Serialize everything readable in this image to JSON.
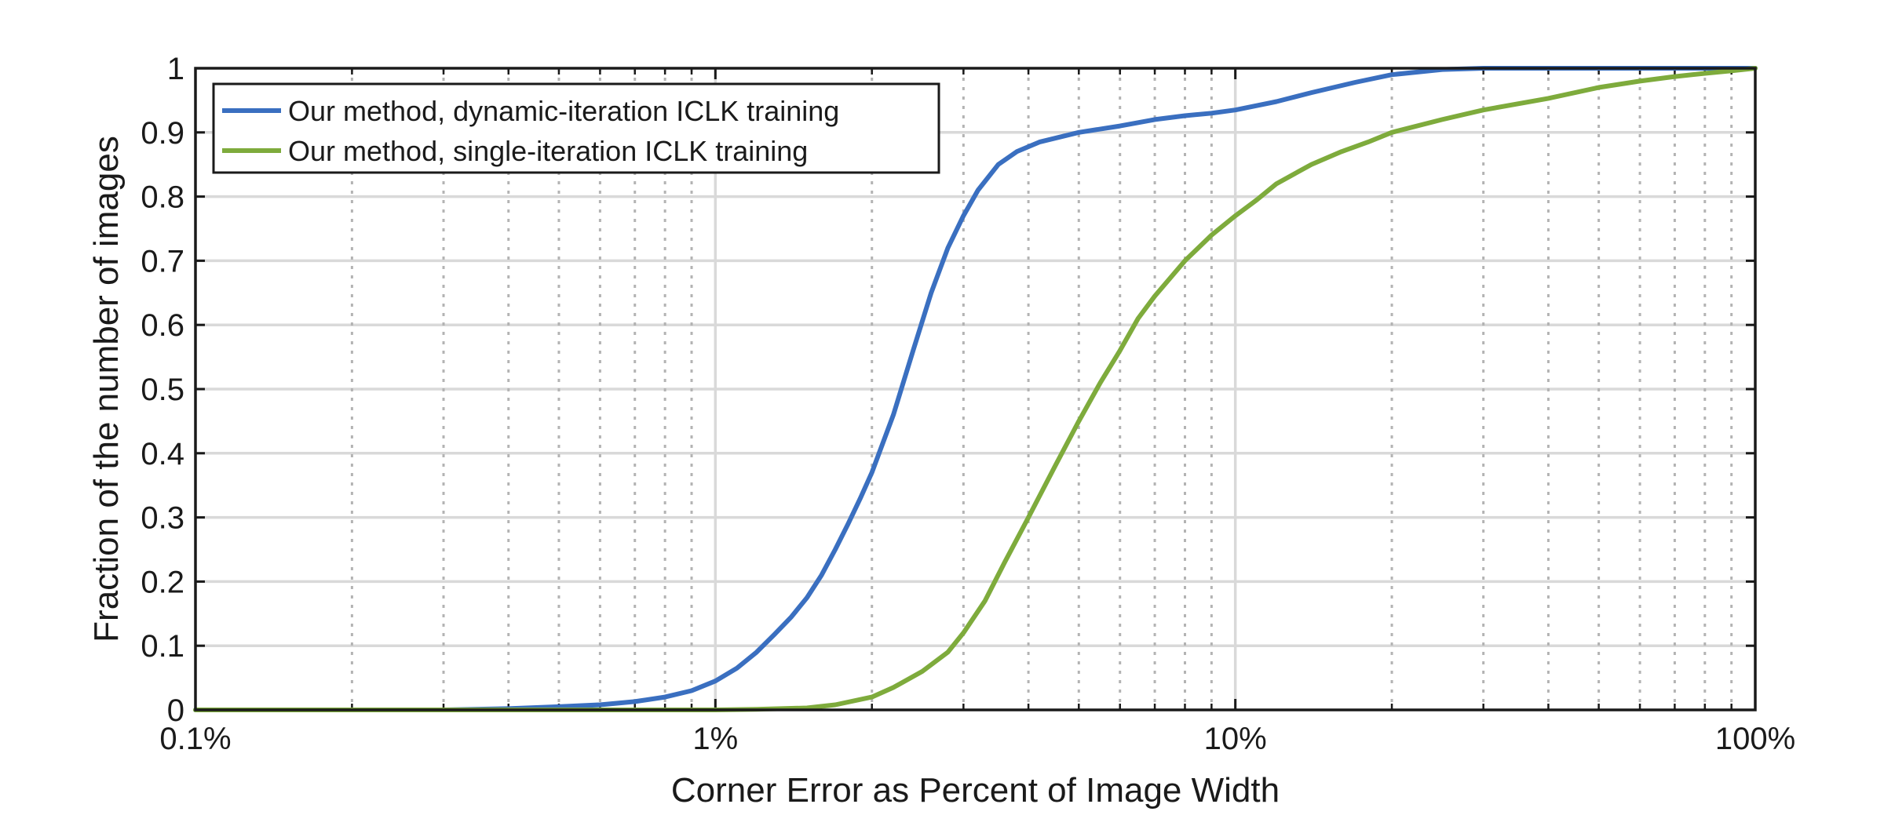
{
  "chart_data": {
    "type": "line",
    "xlabel": "Corner Error as Percent of Image Width",
    "ylabel": "Fraction of the number of images",
    "x_scale": "log",
    "xlim": [
      0.1,
      100
    ],
    "ylim": [
      0,
      1
    ],
    "x_ticks": [
      0.1,
      1,
      10,
      100
    ],
    "x_tick_labels": [
      "0.1%",
      "1%",
      "10%",
      "100%"
    ],
    "y_ticks": [
      0,
      0.1,
      0.2,
      0.3,
      0.4,
      0.5,
      0.6,
      0.7,
      0.8,
      0.9,
      1
    ],
    "y_tick_labels": [
      "0",
      "0.1",
      "0.2",
      "0.3",
      "0.4",
      "0.5",
      "0.6",
      "0.7",
      "0.8",
      "0.9",
      "1"
    ],
    "grid": true,
    "legend_position": "top-left",
    "series": [
      {
        "name": "Our method, dynamic-iteration ICLK training",
        "color": "#3a6fc0",
        "points": [
          [
            0.1,
            0
          ],
          [
            0.3,
            0
          ],
          [
            0.4,
            0.002
          ],
          [
            0.5,
            0.005
          ],
          [
            0.6,
            0.008
          ],
          [
            0.7,
            0.013
          ],
          [
            0.8,
            0.02
          ],
          [
            0.9,
            0.03
          ],
          [
            1.0,
            0.045
          ],
          [
            1.1,
            0.065
          ],
          [
            1.2,
            0.09
          ],
          [
            1.3,
            0.118
          ],
          [
            1.4,
            0.145
          ],
          [
            1.5,
            0.175
          ],
          [
            1.6,
            0.21
          ],
          [
            1.7,
            0.25
          ],
          [
            1.8,
            0.29
          ],
          [
            1.9,
            0.33
          ],
          [
            2.0,
            0.37
          ],
          [
            2.2,
            0.46
          ],
          [
            2.4,
            0.56
          ],
          [
            2.6,
            0.65
          ],
          [
            2.8,
            0.72
          ],
          [
            3.0,
            0.77
          ],
          [
            3.2,
            0.81
          ],
          [
            3.5,
            0.85
          ],
          [
            3.8,
            0.87
          ],
          [
            4.2,
            0.885
          ],
          [
            5.0,
            0.9
          ],
          [
            6.0,
            0.91
          ],
          [
            7.0,
            0.92
          ],
          [
            8.0,
            0.926
          ],
          [
            9.0,
            0.93
          ],
          [
            10,
            0.935
          ],
          [
            12,
            0.948
          ],
          [
            14,
            0.962
          ],
          [
            17,
            0.978
          ],
          [
            20,
            0.99
          ],
          [
            25,
            0.998
          ],
          [
            30,
            1.0
          ],
          [
            100,
            1.0
          ]
        ]
      },
      {
        "name": "Our method, single-iteration ICLK training",
        "color": "#7eab3c",
        "points": [
          [
            0.1,
            0
          ],
          [
            1.0,
            0
          ],
          [
            1.2,
            0.001
          ],
          [
            1.5,
            0.003
          ],
          [
            1.7,
            0.008
          ],
          [
            2.0,
            0.02
          ],
          [
            2.2,
            0.035
          ],
          [
            2.5,
            0.06
          ],
          [
            2.8,
            0.09
          ],
          [
            3.0,
            0.12
          ],
          [
            3.3,
            0.17
          ],
          [
            3.6,
            0.23
          ],
          [
            4.0,
            0.3
          ],
          [
            4.5,
            0.38
          ],
          [
            5.0,
            0.45
          ],
          [
            5.5,
            0.51
          ],
          [
            6.0,
            0.56
          ],
          [
            6.5,
            0.61
          ],
          [
            7.0,
            0.645
          ],
          [
            8.0,
            0.7
          ],
          [
            9.0,
            0.74
          ],
          [
            10,
            0.77
          ],
          [
            11,
            0.795
          ],
          [
            12,
            0.82
          ],
          [
            14,
            0.85
          ],
          [
            16,
            0.87
          ],
          [
            18,
            0.885
          ],
          [
            20,
            0.9
          ],
          [
            25,
            0.92
          ],
          [
            30,
            0.935
          ],
          [
            40,
            0.953
          ],
          [
            50,
            0.97
          ],
          [
            60,
            0.98
          ],
          [
            70,
            0.987
          ],
          [
            80,
            0.992
          ],
          [
            90,
            0.996
          ],
          [
            100,
            1.0
          ]
        ]
      }
    ]
  }
}
